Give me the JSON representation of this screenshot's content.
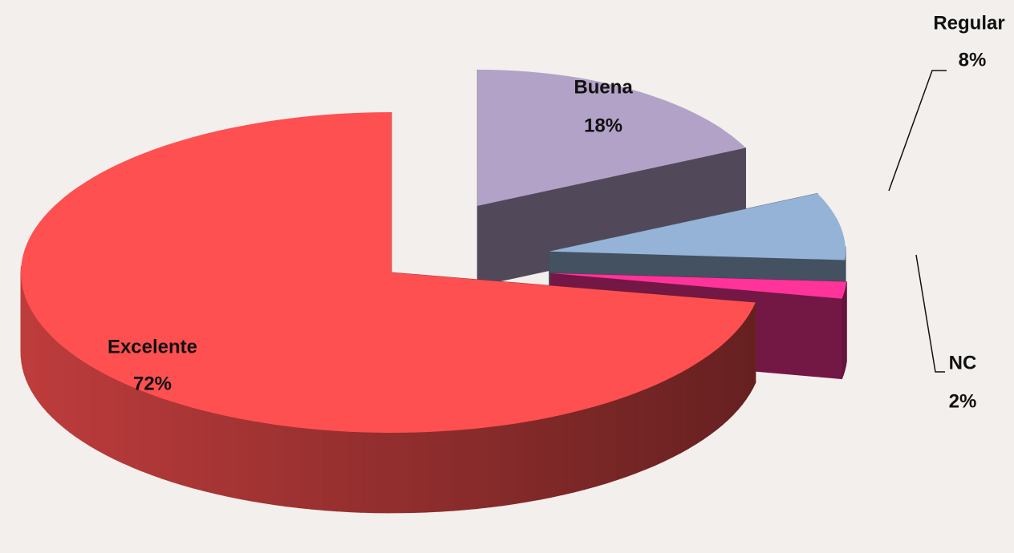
{
  "chart_data": {
    "type": "pie",
    "categories": [
      "Buena",
      "Regular",
      "NC",
      "Excelente"
    ],
    "values": [
      18,
      8,
      2,
      72
    ],
    "value_labels": [
      "18%",
      "8%",
      "2%",
      "72%"
    ],
    "colors": [
      "#b3a2c7",
      "#95b3d7",
      "#ff3399",
      "#fe5050"
    ]
  }
}
